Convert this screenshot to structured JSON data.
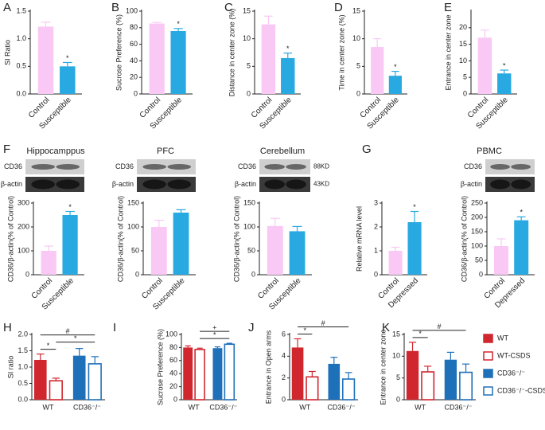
{
  "chart_data": [
    {
      "type": "bar",
      "panel": "A",
      "ylabel": "SI Ratio",
      "categories": [
        "Control",
        "Susceptible"
      ],
      "values": [
        1.22,
        0.5
      ],
      "errors": [
        0.08,
        0.07
      ],
      "colors": [
        "#f9c8f4",
        "#29a9e1"
      ],
      "significance": [
        null,
        "*"
      ],
      "ylim": [
        0,
        1.5
      ],
      "yticks": [
        {
          "value": 0,
          "label": "0.0"
        },
        0.5,
        {
          "value": 1,
          "label": "1.0"
        },
        1.5
      ]
    },
    {
      "type": "bar",
      "panel": "B",
      "ylabel": "Sucrose Preference (%)",
      "categories": [
        "Control",
        "Susceptible"
      ],
      "values": [
        85,
        76
      ],
      "errors": [
        1.5,
        3
      ],
      "colors": [
        "#f9c8f4",
        "#29a9e1"
      ],
      "significance": [
        null,
        "*"
      ],
      "ylim": [
        0,
        100
      ],
      "yticks": [
        0,
        20,
        40,
        60,
        80,
        100
      ]
    },
    {
      "type": "bar",
      "panel": "C",
      "ylabel": "Distance in center zone (%)",
      "categories": [
        "Control",
        "Susceptible"
      ],
      "values": [
        12.6,
        6.5
      ],
      "errors": [
        1.5,
        0.9
      ],
      "colors": [
        "#f9c8f4",
        "#29a9e1"
      ],
      "significance": [
        null,
        "*"
      ],
      "ylim": [
        0,
        15
      ],
      "yticks": [
        0,
        5,
        10,
        15
      ]
    },
    {
      "type": "bar",
      "panel": "D",
      "ylabel": "Time in center zone (%)",
      "categories": [
        "Control",
        "Susceptible"
      ],
      "values": [
        8.5,
        3.3
      ],
      "errors": [
        1.5,
        0.8
      ],
      "colors": [
        "#f9c8f4",
        "#29a9e1"
      ],
      "significance": [
        null,
        "*"
      ],
      "ylim": [
        0,
        15
      ],
      "yticks": [
        0,
        5,
        10,
        15
      ]
    },
    {
      "type": "bar",
      "panel": "E",
      "ylabel": "Entrance in center zone",
      "categories": [
        "Control",
        "Susceptible"
      ],
      "values": [
        17,
        6.2
      ],
      "errors": [
        2.3,
        1
      ],
      "colors": [
        "#f9c8f4",
        "#29a9e1"
      ],
      "significance": [
        null,
        "*"
      ],
      "ylim": [
        0,
        25
      ],
      "yticks": [
        0,
        5,
        10,
        15,
        20
      ]
    },
    {
      "type": "bar",
      "panel": "F",
      "title": "Hippocamppus",
      "blot": {
        "rows": [
          "CD36",
          "β-actin"
        ]
      },
      "ylabel": "CD36/β-actin(% of Control)",
      "categories": [
        "Control",
        "Susceptible"
      ],
      "values": [
        100,
        250
      ],
      "errors": [
        20,
        15
      ],
      "colors": [
        "#f9c8f4",
        "#29a9e1"
      ],
      "significance": [
        null,
        "*"
      ],
      "ylim": [
        0,
        300
      ],
      "yticks": [
        0,
        100,
        200,
        300
      ]
    },
    {
      "type": "bar",
      "title": "PFC",
      "blot": {
        "rows": [
          "CD36",
          "β-actin"
        ]
      },
      "ylabel": "CD36/β-actin(% of Control)",
      "categories": [
        "Control",
        "Susceptible"
      ],
      "values": [
        100,
        130
      ],
      "errors": [
        14,
        6
      ],
      "colors": [
        "#f9c8f4",
        "#29a9e1"
      ],
      "ylim": [
        0,
        150
      ],
      "yticks": [
        0,
        50,
        100,
        150
      ]
    },
    {
      "type": "bar",
      "title": "Cerebellum",
      "blot": {
        "rows": [
          "CD36",
          "β-actin"
        ],
        "sizes": [
          "88KD",
          "43KD"
        ]
      },
      "ylabel": "CD36/β-actin(% of Control)",
      "categories": [
        "Control",
        "Susceptible"
      ],
      "values": [
        102,
        91
      ],
      "errors": [
        16,
        10
      ],
      "colors": [
        "#f9c8f4",
        "#29a9e1"
      ],
      "ylim": [
        0,
        150
      ],
      "yticks": [
        0,
        50,
        100,
        150
      ]
    },
    {
      "type": "bar",
      "panel": "G",
      "ylabel": "Relative mRNA level",
      "categories": [
        "Control",
        "Depressed"
      ],
      "values": [
        1.0,
        2.2
      ],
      "errors": [
        0.15,
        0.45
      ],
      "colors": [
        "#f9c8f4",
        "#29a9e1"
      ],
      "significance": [
        null,
        "*"
      ],
      "ylim": [
        0,
        3
      ],
      "yticks": [
        0,
        1,
        2,
        3
      ]
    },
    {
      "type": "bar",
      "title": "PBMC",
      "blot": {
        "rows": [
          "CD36",
          "β-actin"
        ]
      },
      "ylabel": "CD36/β-actin(% of Control)",
      "categories": [
        "Control",
        "Depressed"
      ],
      "values": [
        100,
        190
      ],
      "errors": [
        25,
        12
      ],
      "colors": [
        "#f9c8f4",
        "#29a9e1"
      ],
      "significance": [
        null,
        "*"
      ],
      "ylim": [
        0,
        250
      ],
      "yticks": [
        0,
        50,
        100,
        150,
        200,
        250
      ]
    },
    {
      "type": "grouped",
      "panel": "H",
      "ylabel": "SI ratio",
      "groups": [
        "WT",
        "CD36⁻/⁻"
      ],
      "values": [
        1.22,
        0.58,
        1.35,
        1.1
      ],
      "errors": [
        0.18,
        0.08,
        0.22,
        0.22
      ],
      "comparisons": [
        {
          "bars": [
            0,
            1
          ],
          "label": "*"
        },
        {
          "bars": [
            1,
            3
          ],
          "label": "*"
        },
        {
          "bars": [
            0,
            3
          ],
          "label": "#"
        }
      ],
      "ylim": [
        0,
        2
      ],
      "yticks": [
        {
          "value": 0,
          "label": "0.0"
        },
        0.5,
        {
          "value": 1,
          "label": "1.0"
        },
        1.5,
        {
          "value": 2,
          "label": "2.0"
        }
      ]
    },
    {
      "type": "grouped",
      "panel": "I",
      "ylabel": "Sucrose Preference (%)",
      "groups": [
        "WT",
        "CD36⁻/⁻"
      ],
      "values": [
        80,
        77,
        79,
        85
      ],
      "errors": [
        2.5,
        2,
        2,
        1.5
      ],
      "comparisons": [
        {
          "bars": [
            1,
            3
          ],
          "label": "*"
        },
        {
          "bars": [
            1,
            3
          ],
          "label": "+"
        }
      ],
      "ylim": [
        0,
        100
      ],
      "yticks": [
        0,
        20,
        40,
        60,
        80,
        100
      ]
    },
    {
      "type": "grouped",
      "panel": "J",
      "ylabel": "Entrance in Open arms",
      "groups": [
        "WT",
        "CD36⁻/⁻"
      ],
      "values": [
        4.8,
        2.1,
        3.3,
        1.9
      ],
      "errors": [
        0.8,
        0.5,
        0.6,
        0.6
      ],
      "comparisons": [
        {
          "bars": [
            0,
            1
          ],
          "label": "*"
        },
        {
          "bars": [
            0,
            3
          ],
          "label": "#"
        }
      ],
      "ylim": [
        0,
        6
      ],
      "yticks": [
        0,
        2,
        4,
        6
      ]
    },
    {
      "type": "grouped",
      "panel": "K",
      "ylabel": "Entrance in center zone",
      "groups": [
        "WT",
        "CD36⁻/⁻"
      ],
      "values": [
        11.2,
        6.4,
        9.2,
        6.3
      ],
      "errors": [
        2,
        1.3,
        1.7,
        1.9
      ],
      "comparisons": [
        {
          "bars": [
            0,
            1
          ],
          "label": "*"
        },
        {
          "bars": [
            0,
            3
          ],
          "label": "#"
        }
      ],
      "ylim": [
        0,
        15
      ],
      "yticks": [
        0,
        5,
        10,
        15
      ]
    }
  ],
  "legend": [
    {
      "name": "WT",
      "color": "#d0272f",
      "filled": true
    },
    {
      "name": "WT-CSDS",
      "color": "#d0272f",
      "filled": false
    },
    {
      "name": "CD36⁻/⁻",
      "color": "#1e70b8",
      "filled": true
    },
    {
      "name": "CD36⁻/⁻-CSDS",
      "color": "#1e70b8",
      "filled": false
    }
  ]
}
